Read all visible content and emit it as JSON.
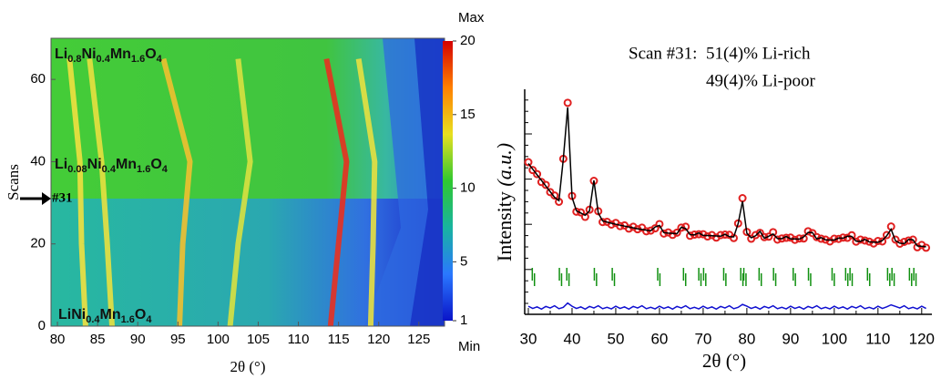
{
  "chart_data": [
    {
      "type": "heatmap",
      "xlabel": "2θ (°)",
      "ylabel": "Scans",
      "xlim": [
        79.2,
        128.2
      ],
      "ylim": [
        0,
        70
      ],
      "xticks": [
        80,
        85,
        90,
        95,
        100,
        105,
        110,
        115,
        120,
        125
      ],
      "yticks": [
        0,
        20,
        40,
        60
      ],
      "colorbar": {
        "clim": [
          1,
          20
        ],
        "ticks": [
          1,
          5,
          10,
          15,
          20
        ],
        "max_label": "Max",
        "min_label": "Min",
        "colors": [
          "#0a14c8",
          "#2a78ff",
          "#18b4a0",
          "#30c830",
          "#e8e020",
          "#ff8000",
          "#d40000"
        ]
      },
      "annotations": [
        {
          "parts": [
            "Li",
            "0.8",
            "Ni",
            "0.4",
            "Mn",
            "1.6",
            "O",
            "4"
          ]
        },
        {
          "parts": [
            "Li",
            "0.08",
            "Ni",
            "0.4",
            "Mn",
            "1.6",
            "O",
            "4"
          ]
        },
        {
          "parts": [
            "LiNi",
            "0.4",
            "Mn",
            "1.6",
            "O",
            "4"
          ]
        }
      ],
      "marker": {
        "label": "#31",
        "scan": 31
      },
      "traces": [
        {
          "x": [
            83.5,
            83,
            82.8,
            81.5
          ],
          "y": [
            0,
            20,
            40,
            65
          ],
          "color": "#f0e040"
        },
        {
          "x": [
            86.8,
            86.2,
            85.5,
            84
          ],
          "y": [
            0,
            20,
            40,
            65
          ],
          "color": "#e8e040"
        },
        {
          "x": [
            95.2,
            95.6,
            96.5,
            93.2
          ],
          "y": [
            0,
            20,
            40,
            65
          ],
          "color": "#f0c030"
        },
        {
          "x": [
            101.5,
            102.5,
            104,
            102.5
          ],
          "y": [
            0,
            20,
            40,
            65
          ],
          "color": "#d8e040"
        },
        {
          "x": [
            114,
            115,
            116,
            113.5
          ],
          "y": [
            0,
            20,
            40,
            65
          ],
          "color": "#e83020"
        },
        {
          "x": [
            119,
            119.3,
            119.5,
            117.5
          ],
          "y": [
            0,
            20,
            40,
            65
          ],
          "color": "#e8e040"
        }
      ]
    },
    {
      "type": "refinement",
      "xlabel": "2θ (°)",
      "ylabel": "Intensity ",
      "ylabel_unit": "(a.u.)",
      "annotations": [
        "Scan #31:  51(4)% Li-rich",
        "49(4)% Li-poor"
      ],
      "xlim": [
        30,
        121.5
      ],
      "ylim": [
        0,
        100
      ],
      "xticks": [
        30,
        40,
        50,
        60,
        70,
        80,
        90,
        100,
        110,
        120
      ],
      "x": [
        30,
        31,
        32,
        33,
        34,
        35,
        36,
        37,
        38,
        39,
        40,
        41,
        42,
        43,
        44,
        45,
        46,
        47,
        48,
        49,
        50,
        51,
        52,
        53,
        54,
        55,
        56,
        57,
        58,
        59,
        60,
        61,
        62,
        63,
        64,
        65,
        66,
        67,
        68,
        69,
        70,
        71,
        72,
        73,
        74,
        75,
        76,
        77,
        78,
        79,
        80,
        81,
        82,
        83,
        84,
        85,
        86,
        87,
        88,
        89,
        90,
        91,
        92,
        93,
        94,
        95,
        96,
        97,
        98,
        99,
        100,
        101,
        102,
        103,
        104,
        105,
        106,
        107,
        108,
        109,
        110,
        111,
        112,
        113,
        114,
        115,
        116,
        117,
        118,
        119,
        120,
        121
      ],
      "series": [
        {
          "color": "#e02020",
          "values": [
            67.6,
            64.1,
            62.3,
            58.8,
            57.5,
            54.3,
            52.8,
            50,
            69.1,
            94,
            52.6,
            45.6,
            45.3,
            43.3,
            46.5,
            59.3,
            45.8,
            41,
            41.1,
            39.9,
            40.6,
            39.2,
            39.5,
            38.1,
            38.9,
            37.8,
            38.5,
            36.9,
            37.2,
            38.2,
            40.1,
            35.9,
            36.4,
            35.3,
            36.3,
            38.5,
            38.9,
            34.9,
            35.4,
            35.6,
            35.6,
            34.6,
            35.2,
            34.1,
            35.2,
            35.4,
            35.3,
            33.9,
            40.4,
            51.6,
            36.6,
            33.6,
            35.2,
            36.2,
            34.3,
            34.5,
            36.5,
            33.2,
            33.7,
            34,
            34.1,
            33.1,
            33.7,
            33.7,
            36.9,
            36.1,
            34.3,
            33.6,
            33.2,
            32.4,
            33.6,
            33.5,
            34.1,
            34,
            35.1,
            32.3,
            33.2,
            32.8,
            32.3,
            31.5,
            32.6,
            32.4,
            35.2,
            39,
            33.2,
            31.4,
            32.2,
            32.8,
            33.2,
            29.8,
            30.8,
            29.6
          ]
        },
        {
          "color": "#000000",
          "values": [
            67,
            64.5,
            62,
            59.5,
            57,
            54.5,
            52,
            50.5,
            69,
            92,
            52,
            46,
            45,
            44,
            46,
            59.5,
            45,
            41.5,
            41,
            40.5,
            40,
            39.6,
            39.2,
            38.8,
            38.4,
            38,
            37.7,
            37.4,
            37.1,
            38.8,
            39.5,
            36.3,
            36.1,
            36,
            35.8,
            38.7,
            38.1,
            35.4,
            35.3,
            36.2,
            35,
            35,
            34.9,
            34.8,
            34.7,
            35.6,
            34.5,
            34.4,
            40.3,
            50.2,
            36,
            34,
            34.9,
            36.9,
            33.8,
            34.7,
            35.7,
            33.7,
            33.6,
            34.6,
            33.5,
            33.5,
            33.4,
            34.4,
            36.4,
            36.3,
            33.5,
            34.1,
            33.1,
            33,
            33,
            33.9,
            33.8,
            34.7,
            34.6,
            32.5,
            32.4,
            33.3,
            32.2,
            32.1,
            32,
            32.8,
            34.9,
            37.8,
            32.7,
            31.6,
            31.4,
            33.3,
            33.1,
            30.4,
            30.2,
            30
          ]
        },
        {
          "color": "#1010d0",
          "values": [
            3.6,
            2.6,
            3.3,
            2.3,
            3.5,
            2.8,
            3.8,
            2.5,
            3.1,
            5,
            3.6,
            2.6,
            3.3,
            2.3,
            3.5,
            2.8,
            3.8,
            2.5,
            3.1,
            2.4,
            3.6,
            2.6,
            3.3,
            2.3,
            3.5,
            2.8,
            3.8,
            2.5,
            3.1,
            2.4,
            3.6,
            2.6,
            3.3,
            2.3,
            3.5,
            2.8,
            3.8,
            2.5,
            3.1,
            2.4,
            3.6,
            2.6,
            3.3,
            2.3,
            3.5,
            2.8,
            3.8,
            2.5,
            3.1,
            4.4,
            3.6,
            2.6,
            3.3,
            2.3,
            3.5,
            2.8,
            3.8,
            2.5,
            3.1,
            2.4,
            3.6,
            2.6,
            3.3,
            2.3,
            3.5,
            2.8,
            3.8,
            2.5,
            3.1,
            2.4,
            3.6,
            2.6,
            3.3,
            2.3,
            3.5,
            2.8,
            3.8,
            2.5,
            3.1,
            2.4,
            3.6,
            2.6,
            3.3,
            4.2,
            3.5,
            2.8,
            3.8,
            2.5,
            3.1,
            2.4,
            3.6,
            2.6
          ]
        }
      ],
      "reflections": {
        "color": "#109010",
        "phases": [
          [
            30.9,
            37.1,
            38.8,
            45.1,
            49.2,
            59.6,
            65.5,
            69.0,
            70.1,
            74.7,
            78.6,
            79.3,
            82.8,
            86.1,
            90.6,
            94.1,
            99.5,
            102.6,
            103.6,
            107.6,
            112.2,
            113.2,
            117.2,
            118.2
          ],
          [
            31.4,
            37.6,
            39.3,
            45.6,
            49.7,
            60.1,
            66.0,
            69.5,
            70.6,
            75.2,
            79.1,
            79.8,
            83.3,
            86.6,
            91.1,
            94.6,
            100.0,
            103.1,
            104.1,
            108.1,
            112.7,
            113.7,
            117.7,
            118.7
          ]
        ]
      }
    }
  ]
}
